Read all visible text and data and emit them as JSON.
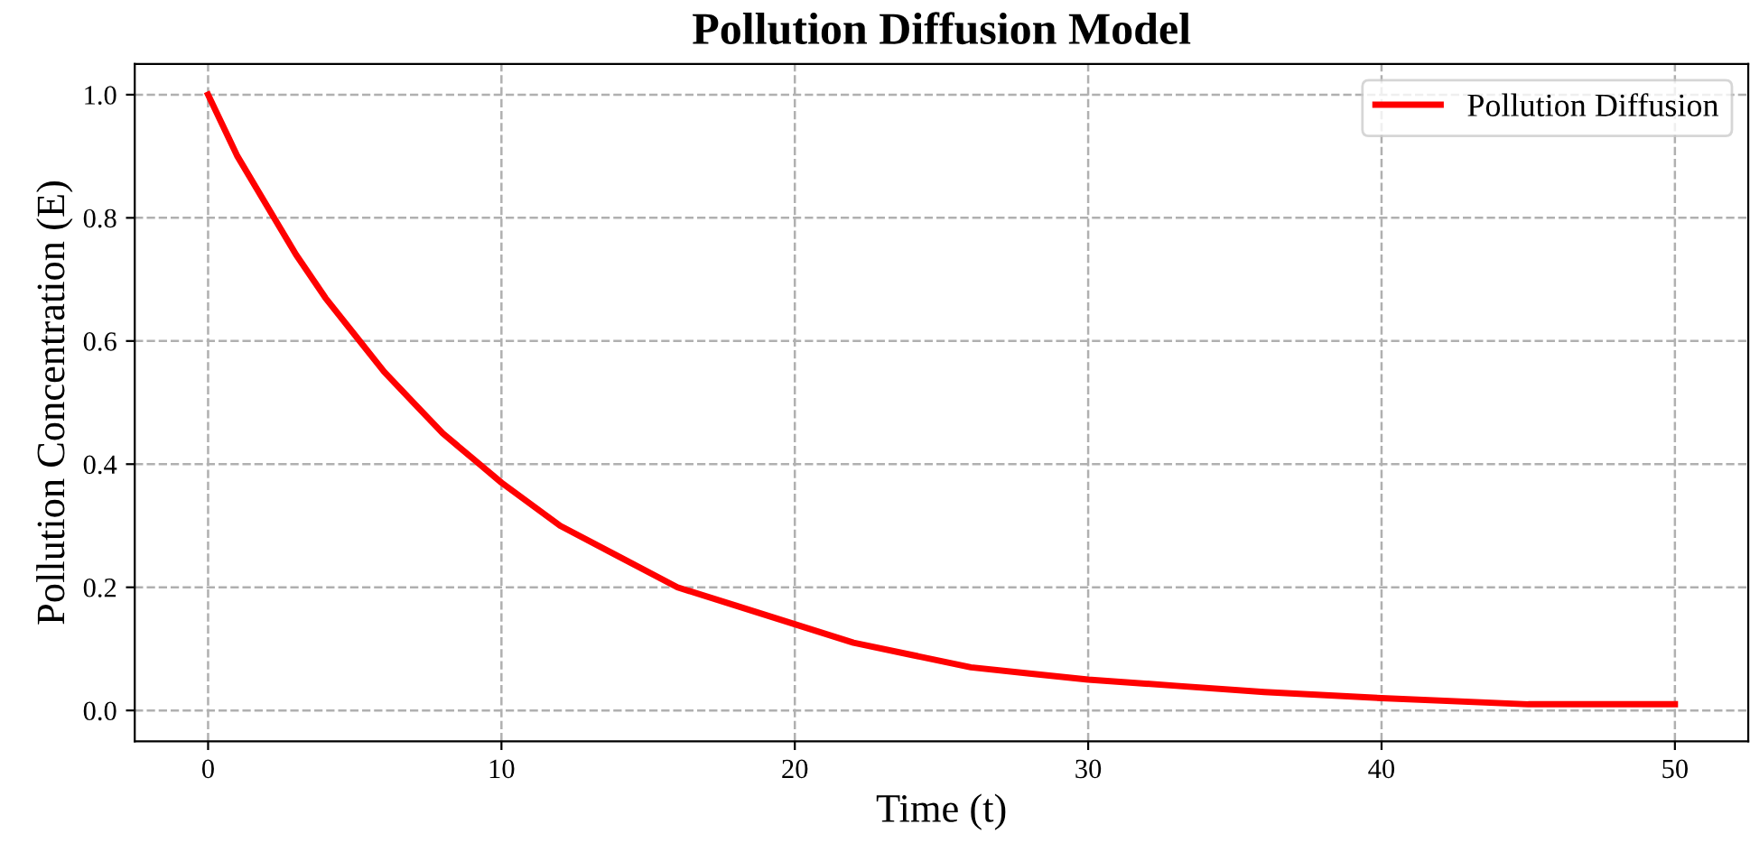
{
  "chart_data": {
    "type": "line",
    "title": "Pollution Diffusion Model",
    "xlabel": "Time (t)",
    "ylabel": "Pollution Concentration (E)",
    "x": [
      0,
      1,
      2,
      3,
      4,
      5,
      6,
      7,
      8,
      9,
      10,
      12,
      14,
      16,
      18,
      20,
      22,
      24,
      26,
      28,
      30,
      33,
      36,
      40,
      45,
      50
    ],
    "series": [
      {
        "name": "Pollution Diffusion",
        "color": "#ff0000",
        "values": [
          1.0,
          0.9,
          0.82,
          0.74,
          0.67,
          0.61,
          0.55,
          0.5,
          0.45,
          0.41,
          0.37,
          0.3,
          0.25,
          0.2,
          0.17,
          0.14,
          0.11,
          0.09,
          0.07,
          0.06,
          0.05,
          0.04,
          0.03,
          0.02,
          0.01,
          0.01
        ]
      }
    ],
    "xlim": [
      -2.5,
      52.5
    ],
    "ylim": [
      -0.05,
      1.05
    ],
    "xticks": [
      0,
      10,
      20,
      30,
      40,
      50
    ],
    "yticks": [
      {
        "value": 0,
        "label": "0.0"
      },
      {
        "value": 0.2,
        "label": "0.2"
      },
      {
        "value": 0.4,
        "label": "0.4"
      },
      {
        "value": 0.6,
        "label": "0.6"
      },
      {
        "value": 0.8,
        "label": "0.8"
      },
      {
        "value": 1.0,
        "label": "1.0"
      }
    ],
    "grid": true,
    "legend": "top right",
    "line_style": "solid",
    "marker": "none"
  }
}
